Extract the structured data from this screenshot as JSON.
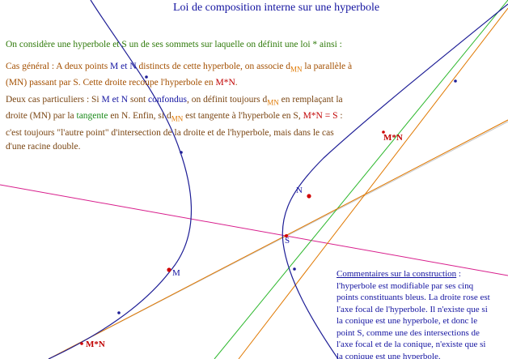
{
  "title": "Loi de composition interne sur une hyperbole",
  "intro": "On considère une hyperbole et S un de ses sommets sur laquelle on définit une loi * ainsi :",
  "general": {
    "line1_a": "Cas général : A deux points ",
    "M": "M",
    "et": " et ",
    "N": "N",
    "line1_b": " distincts de cette hyperbole, on associe d",
    "sub": "MN",
    "line1_c": " la parallèle à",
    "line2_a": "(MN) passant par S. Cette droite recoupe l'hyperbole en ",
    "MN": "M*N",
    "line2_b": "."
  },
  "particular": {
    "l1_a": "Deux cas particuliers : Si ",
    "l1_M": "M",
    "l1_et": " et ",
    "l1_N": "N",
    "l1_b": " sont ",
    "l1_conf": "confondus",
    "l1_c": ", on définit toujours d",
    "l1_sub": "MN",
    "l1_d": " en remplaçant la",
    "l2_a": "droite (MN) par la ",
    "l2_tan": "tangente",
    "l2_b": " en N. Enfin, si d",
    "l2_sub": "MN",
    "l2_c": " est tangente à l'hyperbole en S, ",
    "l2_eq": "M*N = S",
    "l2_d": " :",
    "l3": "c'est toujours \"l'autre point\" d'intersection de la droite et de l'hyperbole, mais dans le cas",
    "l4": "d'une racine double."
  },
  "comment": {
    "heading": "Commentaires sur la construction",
    "heading_tail": " :",
    "lines": [
      "l'hyperbole est modifiable par ses cinq",
      "points constituants bleus. La droite rose est",
      "l'axe focal de l'hyperbole. Il n'existe que si",
      "la conique est une hyperbole, et donc le",
      "point S, comme une des intersections de",
      "l'axe focal et de la conique, n'existe que si",
      "la conique est une hyperbole."
    ]
  },
  "labels": {
    "N": "N",
    "S": "S",
    "M": "M",
    "MN_top": "M*N",
    "MN_bottom": "M*N"
  },
  "colors": {
    "hyperbola": "#1e1e96",
    "axis": "#d81e8c",
    "tangent": "#2db82d",
    "parallel": "#e07800",
    "chord": "#c8c8c8",
    "point": "#d00000"
  }
}
